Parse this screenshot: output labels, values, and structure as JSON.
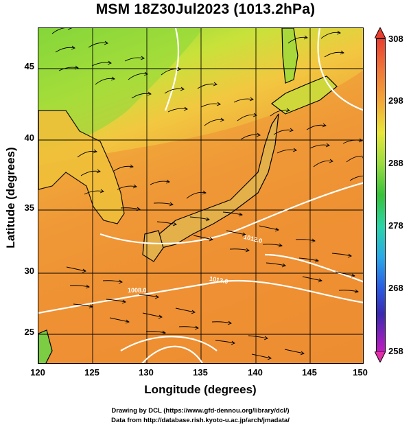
{
  "title": "MSM 18Z30Jul2023 (1013.2hPa)",
  "axes": {
    "xlabel": "Longitude (degrees)",
    "ylabel": "Latitude  (degrees)",
    "x_ticks": [
      "120",
      "125",
      "130",
      "135",
      "140",
      "145",
      "150"
    ],
    "y_ticks": [
      "45",
      "40",
      "35",
      "30",
      "25"
    ]
  },
  "colorbar": {
    "ticks": [
      "308",
      "298",
      "288",
      "278",
      "268",
      "258"
    ],
    "colors": [
      "#e84030",
      "#f2a838",
      "#e8e63a",
      "#36c23a",
      "#2aa8e8",
      "#2a5ae0",
      "#c01cc0"
    ]
  },
  "contour_labels": [
    "1012.0",
    "1008.0",
    "1008.0",
    "1012.0"
  ],
  "credits": {
    "line1": "Drawing by DCL (https://www.gfd-dennou.org/library/dcl/)",
    "line2": "Data from http://database.rish.kyoto-u.ac.jp/arch/jmadata/"
  }
}
